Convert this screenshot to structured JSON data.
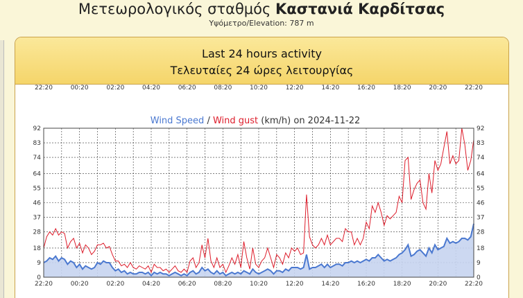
{
  "header": {
    "station_prefix": "Μετεωρολογικός σταθμός ",
    "station_name": "Καστανιά Καρδίτσας",
    "elevation": "Υψόμετρο/Elevation: 787 m"
  },
  "panel": {
    "title_en": "Last 24 hours activity",
    "title_gr": "Τελευταίες 24 ώρες λειτουργίας"
  },
  "colors": {
    "speed": "#4a78d0",
    "speed_fill": "#c6d4f0",
    "gust": "#dd1c2a"
  },
  "chart_data": {
    "type": "line",
    "title_parts": {
      "speed": "Wind Speed",
      "sep": " / ",
      "gust": "Wind gust",
      "rest": " (km/h) on 2024-11-22"
    },
    "x_ticks": [
      "22:20",
      "00:20",
      "02:20",
      "04:20",
      "06:20",
      "08:20",
      "10:20",
      "12:20",
      "14:20",
      "16:20",
      "18:20",
      "20:20",
      "22:20"
    ],
    "y_ticks": [
      0,
      9,
      18,
      28,
      37,
      46,
      55,
      64,
      74,
      83,
      92
    ],
    "ylim": [
      0,
      92
    ],
    "grid": true,
    "series": [
      {
        "name": "Wind Speed",
        "values": [
          9,
          10,
          12,
          11,
          13,
          10,
          12,
          11,
          8,
          10,
          9,
          6,
          8,
          5,
          7,
          6,
          5,
          6,
          9,
          8,
          10,
          9,
          9,
          6,
          4,
          5,
          3,
          4,
          2,
          3,
          2,
          2,
          3,
          3,
          2,
          3,
          1,
          3,
          2,
          3,
          2,
          2,
          1,
          2,
          3,
          2,
          1,
          2,
          1,
          3,
          4,
          2,
          3,
          6,
          4,
          5,
          3,
          2,
          4,
          2,
          3,
          1,
          2,
          3,
          2,
          3,
          2,
          4,
          3,
          2,
          5,
          3,
          2,
          3,
          4,
          5,
          4,
          2,
          4,
          4,
          3,
          5,
          4,
          6,
          6,
          6,
          5,
          6,
          14,
          5,
          6,
          6,
          7,
          8,
          6,
          8,
          6,
          7,
          8,
          8,
          7,
          9,
          9,
          10,
          9,
          10,
          9,
          10,
          11,
          10,
          12,
          12,
          14,
          12,
          10,
          11,
          10,
          11,
          12,
          14,
          15,
          17,
          20,
          13,
          14,
          16,
          17,
          15,
          13,
          18,
          15,
          20,
          17,
          18,
          19,
          24,
          21,
          22,
          21,
          22,
          24,
          24,
          23,
          25,
          33
        ]
      },
      {
        "name": "Wind gust",
        "values": [
          18,
          25,
          28,
          26,
          30,
          26,
          28,
          27,
          18,
          22,
          24,
          18,
          21,
          15,
          20,
          18,
          14,
          16,
          20,
          20,
          21,
          18,
          19,
          14,
          10,
          10,
          7,
          8,
          6,
          9,
          6,
          5,
          7,
          6,
          5,
          7,
          3,
          8,
          6,
          6,
          4,
          5,
          3,
          5,
          7,
          4,
          3,
          5,
          3,
          10,
          12,
          6,
          9,
          20,
          12,
          24,
          10,
          6,
          12,
          6,
          8,
          3,
          7,
          12,
          8,
          14,
          6,
          22,
          12,
          5,
          18,
          8,
          6,
          10,
          12,
          18,
          12,
          6,
          14,
          12,
          8,
          15,
          12,
          18,
          16,
          18,
          14,
          15,
          51,
          25,
          20,
          18,
          20,
          24,
          20,
          26,
          20,
          22,
          24,
          24,
          22,
          30,
          28,
          28,
          20,
          24,
          20,
          24,
          34,
          30,
          44,
          40,
          46,
          40,
          32,
          38,
          36,
          38,
          40,
          50,
          46,
          72,
          74,
          48,
          54,
          58,
          60,
          46,
          42,
          64,
          52,
          72,
          66,
          70,
          80,
          90,
          70,
          75,
          70,
          72,
          92,
          82,
          66,
          72,
          85
        ]
      }
    ]
  }
}
